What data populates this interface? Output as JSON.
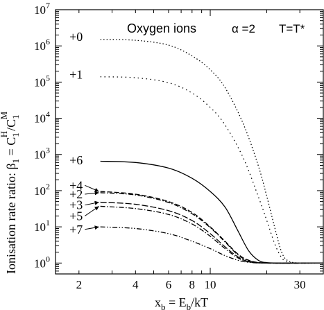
{
  "chart_data": {
    "type": "line",
    "title": "Oxygen ions",
    "param_alpha": "α =2",
    "param_T": "T=T*",
    "xlabel_main": "x",
    "xlabel_sub": "b",
    "xlabel_eq": " = E",
    "xlabel_sub2": "b",
    "xlabel_tail": "/kT",
    "ylabel_prefix": "Ionisation rate ratio:  β",
    "ylabel_sub1": "1",
    "ylabel_mid": " = C",
    "ylabel_sub2": "1",
    "ylabel_sup2": "H",
    "ylabel_div": "/C",
    "ylabel_sub3": "1",
    "ylabel_sup3": "M",
    "xscale": "log",
    "yscale": "log",
    "xlim": [
      1.5,
      40
    ],
    "ylim": [
      0.5,
      10000000
    ],
    "x_ticks": [
      {
        "value": 2,
        "label": "2"
      },
      {
        "value": 4,
        "label": "4"
      },
      {
        "value": 6,
        "label": "6"
      },
      {
        "value": 8,
        "label": "8"
      },
      {
        "value": 10,
        "label": "10"
      },
      {
        "value": 30,
        "label": "30"
      }
    ],
    "y_ticks": [
      {
        "exp": 0,
        "base": "10",
        "sup": "0"
      },
      {
        "exp": 1,
        "base": "10",
        "sup": "1"
      },
      {
        "exp": 2,
        "base": "10",
        "sup": "2"
      },
      {
        "exp": 3,
        "base": "10",
        "sup": "3"
      },
      {
        "exp": 4,
        "base": "10",
        "sup": "4"
      },
      {
        "exp": 5,
        "base": "10",
        "sup": "5"
      },
      {
        "exp": 6,
        "base": "10",
        "sup": "6"
      },
      {
        "exp": 7,
        "base": "10",
        "sup": "7"
      }
    ],
    "grid": false,
    "series": [
      {
        "name": "+0",
        "style": "dotted",
        "points": [
          [
            2.6,
            1500000
          ],
          [
            4,
            1430000
          ],
          [
            6,
            1050000
          ],
          [
            8,
            530000
          ],
          [
            10,
            220000
          ],
          [
            12,
            70000
          ],
          [
            15,
            7000
          ],
          [
            18,
            500
          ],
          [
            20,
            70
          ],
          [
            22,
            10
          ],
          [
            24,
            2
          ],
          [
            26,
            1.15
          ],
          [
            30,
            1
          ],
          [
            40,
            1
          ]
        ]
      },
      {
        "name": "+1",
        "style": "dotted-sparse",
        "points": [
          [
            2.6,
            140000
          ],
          [
            4,
            132000
          ],
          [
            6,
            96000
          ],
          [
            8,
            50000
          ],
          [
            10,
            20000
          ],
          [
            12,
            6500
          ],
          [
            15,
            800
          ],
          [
            18,
            70
          ],
          [
            20,
            15
          ],
          [
            22,
            3.5
          ],
          [
            24,
            1.4
          ],
          [
            26,
            1.05
          ],
          [
            30,
            1
          ],
          [
            40,
            1
          ]
        ]
      },
      {
        "name": "+6",
        "style": "solid",
        "points": [
          [
            2.6,
            650
          ],
          [
            4,
            600
          ],
          [
            6,
            420
          ],
          [
            8,
            220
          ],
          [
            10,
            95
          ],
          [
            12,
            35
          ],
          [
            14,
            8
          ],
          [
            16,
            2.2
          ],
          [
            18,
            1.2
          ],
          [
            20,
            1.03
          ],
          [
            25,
            1
          ],
          [
            40,
            1
          ]
        ]
      },
      {
        "name": "+4",
        "style": "dashed",
        "points": [
          [
            2.6,
            95
          ],
          [
            4,
            80
          ],
          [
            6,
            50
          ],
          [
            8,
            25
          ],
          [
            10,
            10
          ],
          [
            12,
            4
          ],
          [
            14,
            1.8
          ],
          [
            16,
            1.2
          ],
          [
            20,
            1
          ],
          [
            40,
            1
          ]
        ]
      },
      {
        "name": "+2",
        "style": "dash-dot",
        "points": [
          [
            2.6,
            88
          ],
          [
            4,
            76
          ],
          [
            6,
            47
          ],
          [
            8,
            23
          ],
          [
            10,
            9.5
          ],
          [
            12,
            3.8
          ],
          [
            14,
            1.7
          ],
          [
            16,
            1.15
          ],
          [
            20,
            1
          ],
          [
            40,
            1
          ]
        ]
      },
      {
        "name": "+3",
        "style": "dashed-long",
        "points": [
          [
            2.6,
            48
          ],
          [
            4,
            42
          ],
          [
            6,
            28
          ],
          [
            8,
            15
          ],
          [
            10,
            6.5
          ],
          [
            12,
            2.8
          ],
          [
            14,
            1.5
          ],
          [
            16,
            1.1
          ],
          [
            20,
            1
          ],
          [
            40,
            1
          ]
        ]
      },
      {
        "name": "+5",
        "style": "dash-dot",
        "points": [
          [
            2.6,
            37
          ],
          [
            4,
            32
          ],
          [
            6,
            22
          ],
          [
            8,
            12
          ],
          [
            10,
            5.5
          ],
          [
            12,
            2.5
          ],
          [
            14,
            1.4
          ],
          [
            16,
            1.08
          ],
          [
            20,
            1
          ],
          [
            40,
            1
          ]
        ]
      },
      {
        "name": "+7",
        "style": "dash-dot-dot",
        "points": [
          [
            2.6,
            10
          ],
          [
            4,
            9
          ],
          [
            6,
            6.5
          ],
          [
            8,
            4
          ],
          [
            10,
            2.5
          ],
          [
            12,
            1.6
          ],
          [
            14,
            1.2
          ],
          [
            16,
            1.05
          ],
          [
            20,
            1
          ],
          [
            40,
            1
          ]
        ]
      }
    ],
    "labels": [
      {
        "text": "+0",
        "x": 1.78,
        "y": 1800000
      },
      {
        "text": "+1",
        "x": 1.78,
        "y": 160000
      },
      {
        "text": "+6",
        "x": 1.78,
        "y": 700
      },
      {
        "text": "+4",
        "x": 1.78,
        "y": 140
      },
      {
        "text": "+2",
        "x": 1.78,
        "y": 80
      },
      {
        "text": "+3",
        "x": 1.78,
        "y": 40
      },
      {
        "text": "+5",
        "x": 1.78,
        "y": 20
      },
      {
        "text": "+7",
        "x": 1.78,
        "y": 8.5
      }
    ],
    "arrows": [
      {
        "from": [
          2.15,
          140
        ],
        "to": [
          2.6,
          95
        ]
      },
      {
        "from": [
          2.15,
          80
        ],
        "to": [
          2.6,
          88
        ]
      },
      {
        "from": [
          2.15,
          40
        ],
        "to": [
          2.6,
          48
        ]
      },
      {
        "from": [
          2.15,
          20
        ],
        "to": [
          2.6,
          37
        ]
      },
      {
        "from": [
          2.15,
          8.5
        ],
        "to": [
          2.6,
          10
        ]
      }
    ]
  }
}
